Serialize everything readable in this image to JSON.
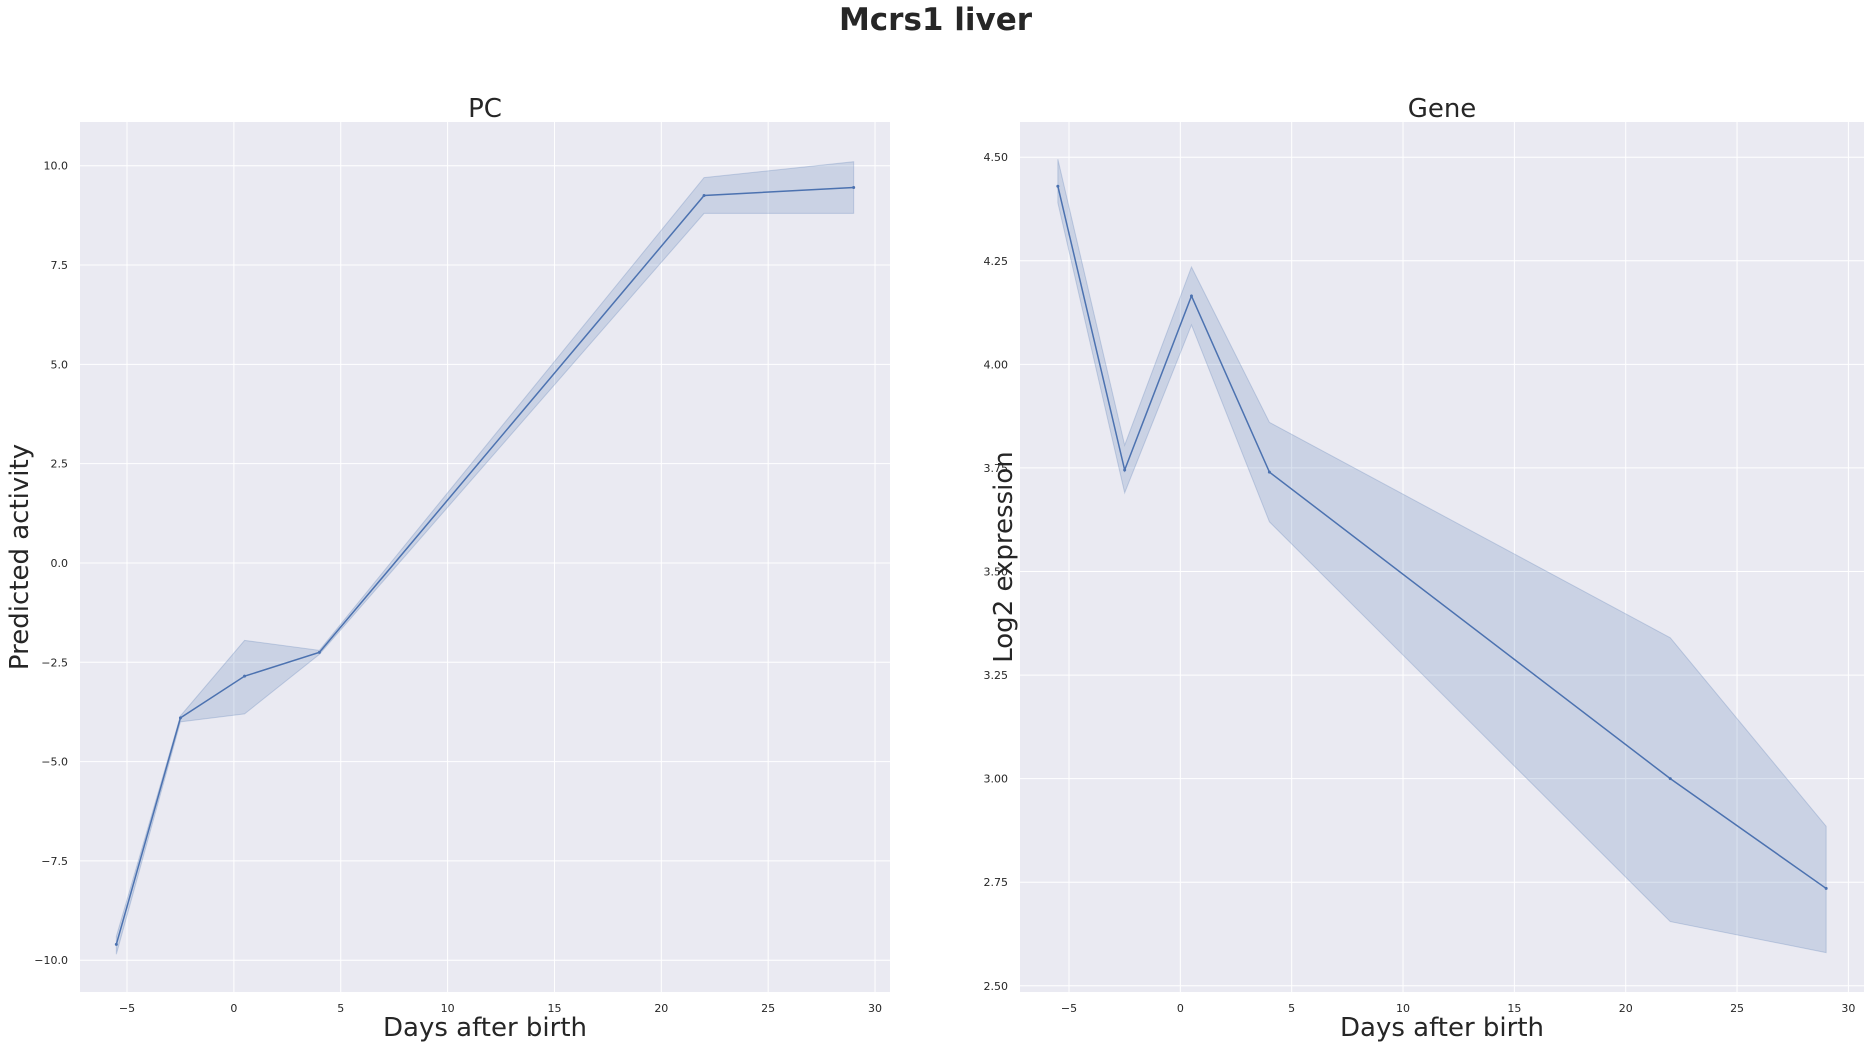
{
  "figure": {
    "title": "Mcrs1 liver"
  },
  "chart_data": [
    {
      "type": "line",
      "title": "PC",
      "xlabel": "Days after birth",
      "ylabel": "Predicted activity",
      "xlim": [
        -7.2,
        30.7
      ],
      "ylim": [
        -10.8,
        11.1
      ],
      "xticks": [
        -5,
        0,
        5,
        10,
        15,
        20,
        25,
        30
      ],
      "yticks": [
        -10.0,
        -7.5,
        -5.0,
        -2.5,
        0.0,
        2.5,
        5.0,
        7.5,
        10.0
      ],
      "ytick_labels": [
        "−10.0",
        "−7.5",
        "−5.0",
        "−2.5",
        "0.0",
        "2.5",
        "5.0",
        "7.5",
        "10.0"
      ],
      "xtick_labels": [
        "−5",
        "0",
        "5",
        "10",
        "15",
        "20",
        "25",
        "30"
      ],
      "grid": true,
      "line_color": "#4c72b0",
      "series": [
        {
          "x": [
            -5.5,
            -2.5,
            0.5,
            4,
            22,
            29
          ],
          "y": [
            -9.6,
            -3.9,
            -2.85,
            -2.25,
            9.25,
            9.45
          ],
          "ci_low": [
            -9.85,
            -4.0,
            -3.8,
            -2.3,
            8.8,
            8.8
          ],
          "ci_high": [
            -9.4,
            -3.85,
            -1.95,
            -2.2,
            9.7,
            10.1
          ]
        }
      ]
    },
    {
      "type": "line",
      "title": "Gene",
      "xlabel": "Days after birth",
      "ylabel": "Log2 expression",
      "xlim": [
        -7.2,
        30.7
      ],
      "ylim": [
        2.485,
        4.585
      ],
      "xticks": [
        -5,
        0,
        5,
        10,
        15,
        20,
        25,
        30
      ],
      "yticks": [
        2.5,
        2.75,
        3.0,
        3.25,
        3.5,
        3.75,
        4.0,
        4.25,
        4.5
      ],
      "ytick_labels": [
        "2.50",
        "2.75",
        "3.00",
        "3.25",
        "3.50",
        "3.75",
        "4.00",
        "4.25",
        "4.50"
      ],
      "xtick_labels": [
        "−5",
        "0",
        "5",
        "10",
        "15",
        "20",
        "25",
        "30"
      ],
      "grid": true,
      "line_color": "#4c72b0",
      "series": [
        {
          "x": [
            -5.5,
            -2.5,
            0.5,
            4,
            22,
            29
          ],
          "y": [
            4.43,
            3.745,
            4.165,
            3.74,
            3.0,
            2.735
          ],
          "ci_low": [
            4.39,
            3.69,
            4.095,
            3.62,
            2.655,
            2.58
          ],
          "ci_high": [
            4.495,
            3.805,
            4.235,
            3.86,
            3.34,
            2.885
          ]
        }
      ]
    }
  ]
}
